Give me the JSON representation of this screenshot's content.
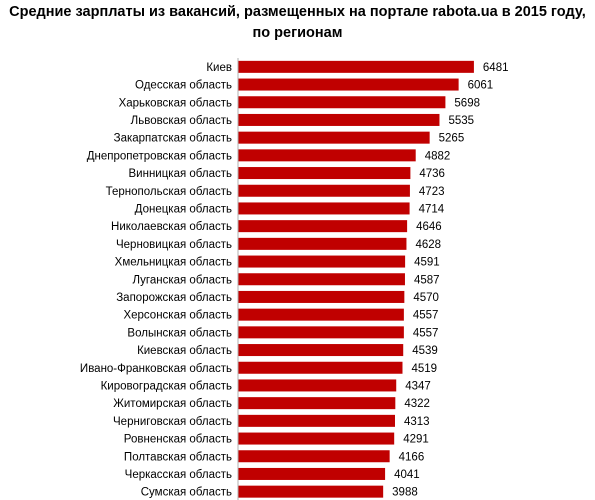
{
  "chart_data": {
    "type": "bar",
    "orientation": "horizontal",
    "title_line1": "Средние зарплаты из вакансий, размещенных на портале rabota.ua в 2015 году,",
    "title_line2": "по регионам",
    "bar_color": "#c00000",
    "xlim": [
      0,
      7000
    ],
    "categories": [
      "Киев",
      "Одесская область",
      "Харьковская область",
      "Львовская область",
      "Закарпатская область",
      "Днепропетровская область",
      "Винницкая область",
      "Тернопольская область",
      "Донецкая область",
      "Николаевская область",
      "Черновицкая область",
      "Хмельницкая область",
      "Луганская область",
      "Запорожская область",
      "Херсонская область",
      "Волынская область",
      "Киевская область",
      "Ивано-Франковская область",
      "Кировоградская область",
      "Житомирская область",
      "Черниговская область",
      "Ровненская область",
      "Полтавская область",
      "Черкасская область",
      "Сумская область"
    ],
    "values": [
      6481,
      6061,
      5698,
      5535,
      5265,
      4882,
      4736,
      4723,
      4714,
      4646,
      4628,
      4591,
      4587,
      4570,
      4557,
      4557,
      4539,
      4519,
      4347,
      4322,
      4313,
      4291,
      4166,
      4041,
      3988
    ]
  }
}
